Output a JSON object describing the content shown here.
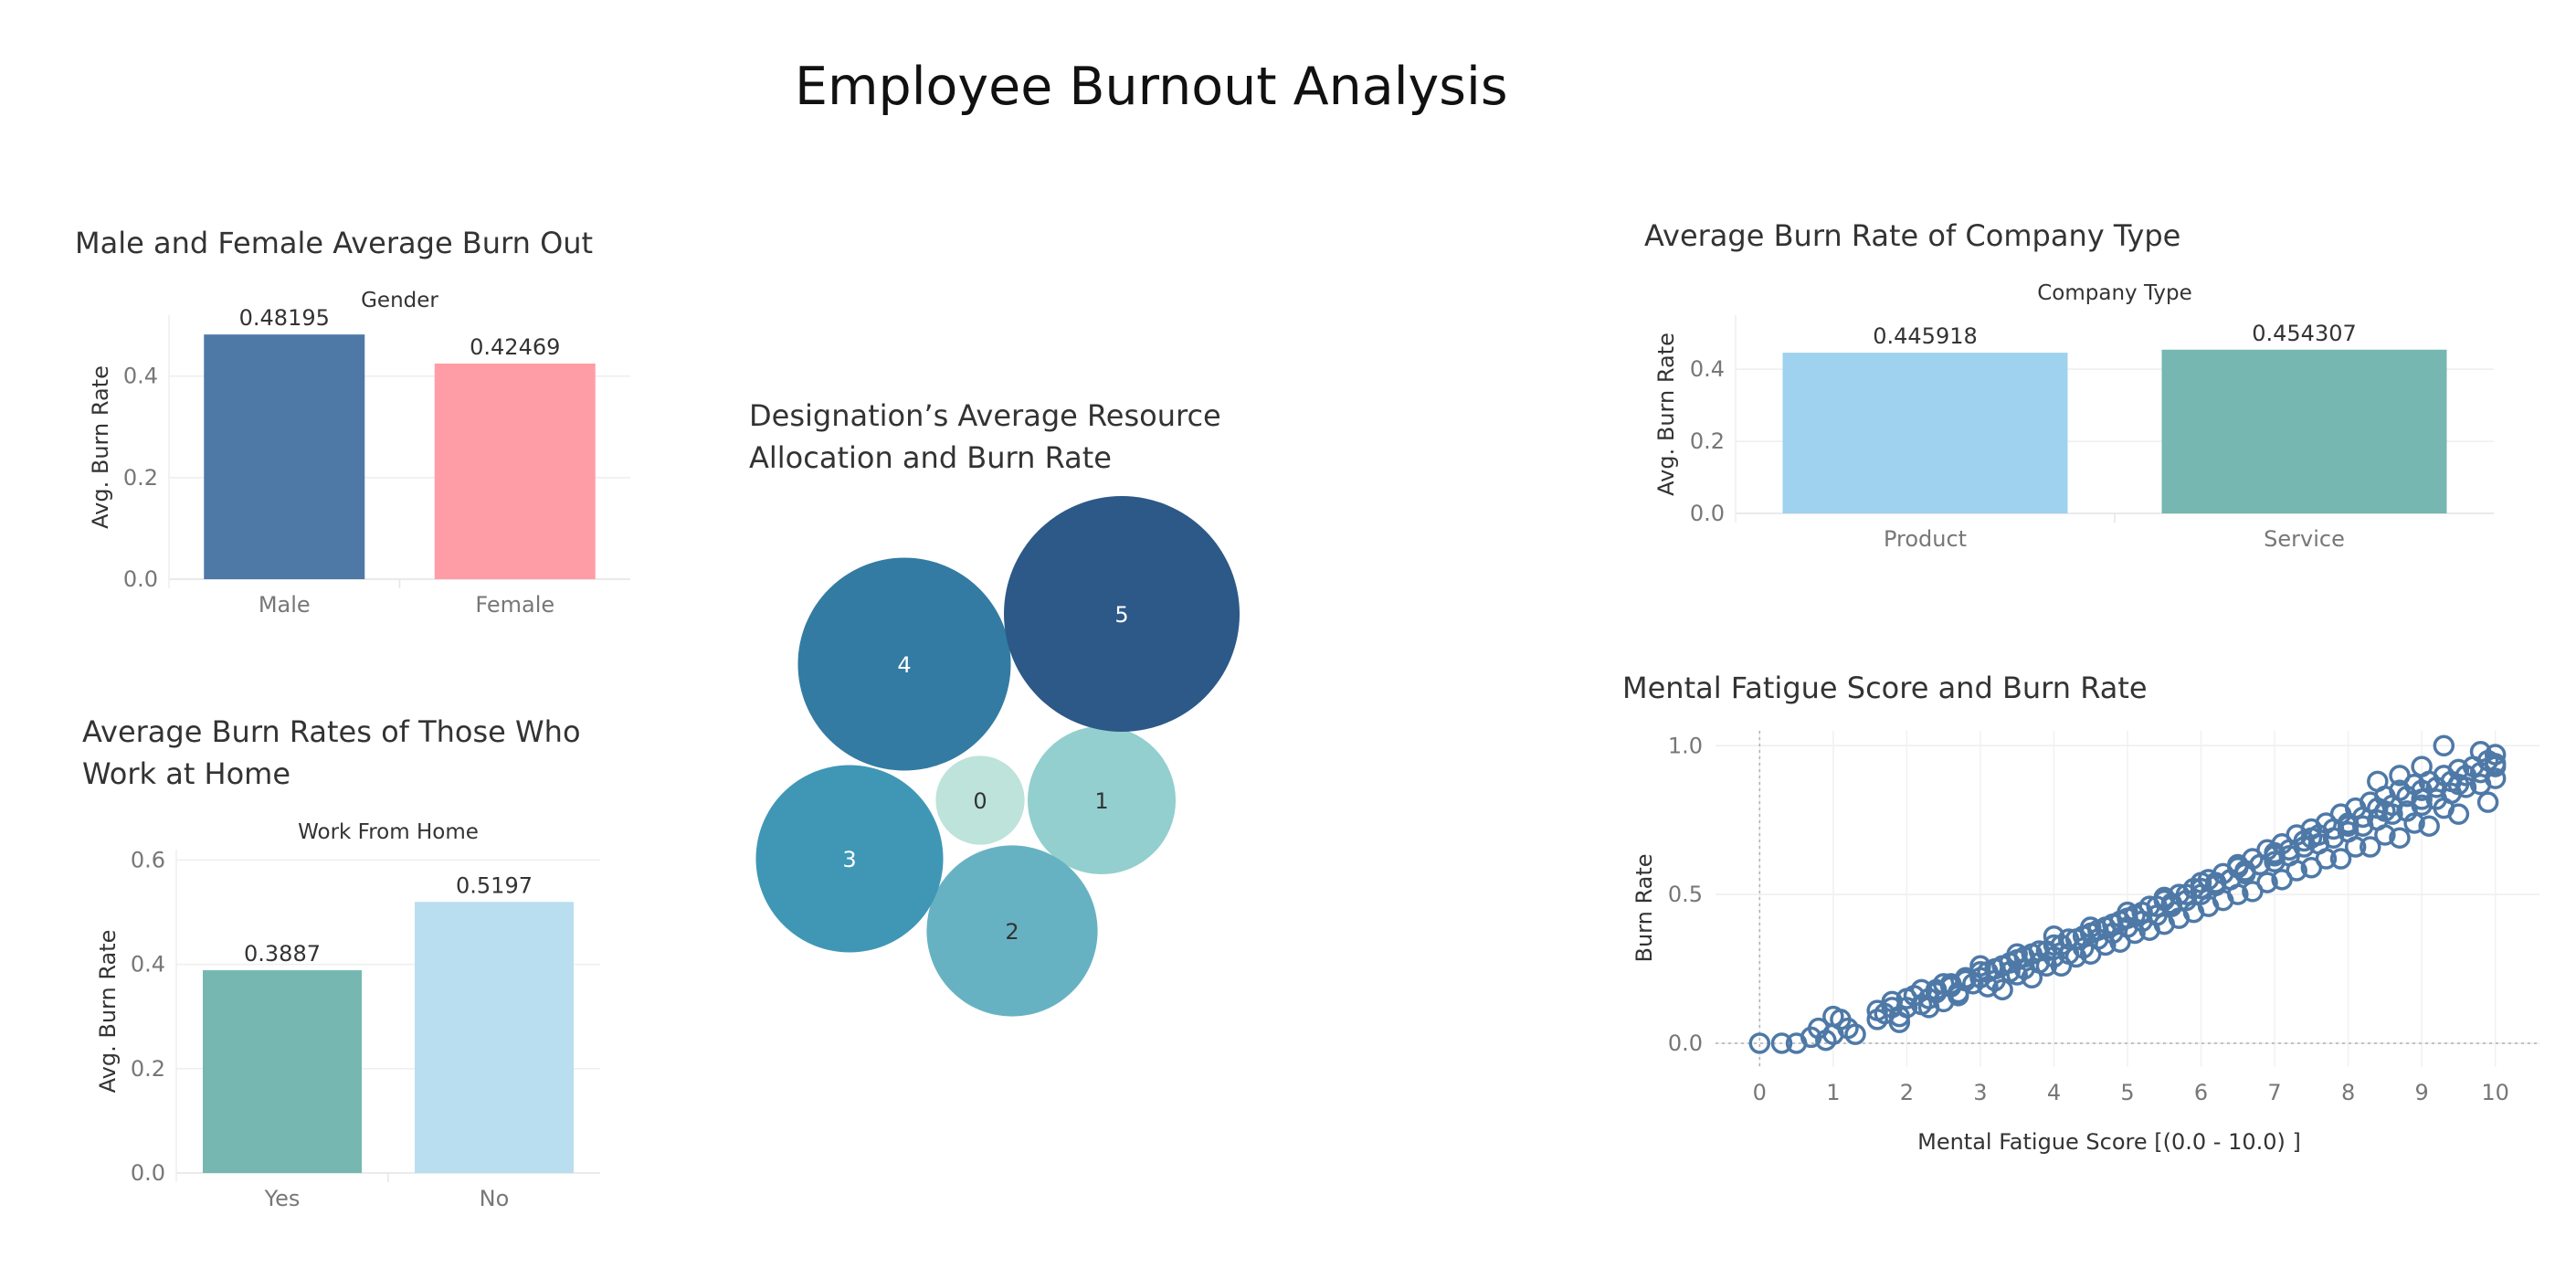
{
  "dashboard": {
    "title": "Employee Burnout Analysis"
  },
  "chart_data": [
    {
      "id": "gender",
      "type": "bar",
      "title": "Male and Female Average Burn Out",
      "header": "Gender",
      "ylabel": "Avg. Burn Rate",
      "xlabel": "",
      "categories": [
        "Male",
        "Female"
      ],
      "values": [
        0.48195,
        0.42469
      ],
      "value_labels": [
        "0.48195",
        "0.42469"
      ],
      "colors": [
        "#4e79a7",
        "#ff9da7"
      ],
      "ylim": [
        0,
        0.52
      ],
      "yticks": [
        0,
        0.2,
        0.4
      ],
      "ytick_labels": [
        "0.0",
        "0.2",
        "0.4"
      ],
      "grid": true
    },
    {
      "id": "wfh",
      "type": "bar",
      "title": "Average Burn Rates of Those Who Work at Home",
      "title_lines": [
        "Average Burn Rates of Those Who",
        "Work at Home"
      ],
      "header": "Work From Home",
      "ylabel": "Avg. Burn Rate",
      "xlabel": "",
      "categories": [
        "Yes",
        "No"
      ],
      "values": [
        0.3887,
        0.5197
      ],
      "value_labels": [
        "0.3887",
        "0.5197"
      ],
      "colors": [
        "#76b7b2",
        "#b9def0"
      ],
      "ylim": [
        0,
        0.62
      ],
      "yticks": [
        0,
        0.2,
        0.4,
        0.6
      ],
      "ytick_labels": [
        "0.0",
        "0.2",
        "0.4",
        "0.6"
      ],
      "grid": true
    },
    {
      "id": "designation",
      "type": "bubble",
      "title": "Designation’s Average Resource Allocation and Burn Rate",
      "title_lines": [
        "Designation’s Average Resource",
        "Allocation and Burn Rate"
      ],
      "labels": [
        "0",
        "1",
        "2",
        "3",
        "4",
        "5"
      ],
      "size_values": [
        0.27,
        0.75,
        1.0,
        1.2,
        1.55,
        1.9
      ],
      "colors": [
        "#bde3da",
        "#92cfce",
        "#67b2c2",
        "#3f97b5",
        "#337ba2",
        "#2c5987"
      ],
      "label_colors": [
        "#333333",
        "#333333",
        "#333333",
        "#ffffff",
        "#ffffff",
        "#ffffff"
      ]
    },
    {
      "id": "company",
      "type": "bar",
      "title": "Average Burn Rate of Company Type",
      "header": "Company Type",
      "ylabel": "Avg. Burn Rate",
      "xlabel": "",
      "categories": [
        "Product",
        "Service"
      ],
      "values": [
        0.445918,
        0.454307
      ],
      "value_labels": [
        "0.445918",
        "0.454307"
      ],
      "colors": [
        "#9fd2ee",
        "#76b7b2"
      ],
      "ylim": [
        0,
        0.55
      ],
      "yticks": [
        0,
        0.2,
        0.4
      ],
      "ytick_labels": [
        "0.0",
        "0.2",
        "0.4"
      ],
      "grid": true
    },
    {
      "id": "fatigue",
      "type": "scatter",
      "title": "Mental Fatigue Score and Burn Rate",
      "xlabel": "Mental Fatigue Score [(0.0 - 10.0) ]",
      "ylabel": "Burn Rate",
      "xlim": [
        -0.6,
        10.6
      ],
      "ylim": [
        -0.08,
        1.05
      ],
      "xticks": [
        0,
        1,
        2,
        3,
        4,
        5,
        6,
        7,
        8,
        9,
        10
      ],
      "xtick_labels": [
        "0",
        "1",
        "2",
        "3",
        "4",
        "5",
        "6",
        "7",
        "8",
        "9",
        "10"
      ],
      "yticks": [
        0,
        0.5,
        1
      ],
      "ytick_labels": [
        "0.0",
        "0.5",
        "1.0"
      ],
      "marker_color": "#4e79a7",
      "marker": "open-circle",
      "grid": true,
      "x": [
        0.0,
        0.3,
        0.5,
        0.7,
        0.8,
        0.9,
        1.0,
        1.0,
        1.1,
        1.2,
        1.3,
        1.6,
        1.7,
        1.8,
        1.9,
        2.0,
        2.1,
        2.2,
        2.3,
        2.4,
        2.5,
        2.6,
        2.7,
        2.8,
        2.9,
        3.0,
        3.1,
        3.2,
        3.3,
        3.4,
        3.5,
        3.6,
        3.7,
        3.8,
        3.9,
        4.0,
        4.1,
        4.2,
        4.3,
        4.4,
        4.5,
        4.6,
        4.7,
        4.8,
        4.9,
        5.0,
        5.1,
        5.2,
        5.3,
        5.4,
        5.5,
        5.6,
        5.7,
        5.8,
        5.9,
        6.0,
        6.1,
        6.2,
        6.3,
        6.4,
        6.5,
        6.6,
        6.7,
        6.8,
        6.9,
        7.0,
        7.1,
        7.2,
        7.3,
        7.4,
        7.5,
        7.6,
        7.7,
        7.8,
        7.9,
        8.0,
        8.1,
        8.2,
        8.3,
        8.4,
        8.5,
        8.6,
        8.7,
        8.8,
        8.9,
        9.0,
        9.1,
        9.2,
        9.3,
        9.4,
        9.5,
        9.6,
        9.7,
        9.8,
        9.9,
        10.0,
        1.6,
        1.8,
        2.0,
        2.2,
        2.4,
        2.6,
        2.8,
        3.0,
        3.2,
        3.4,
        3.6,
        3.8,
        4.0,
        4.2,
        4.4,
        4.6,
        4.8,
        5.0,
        5.2,
        5.4,
        5.6,
        5.8,
        6.0,
        6.2,
        6.4,
        6.6,
        6.8,
        7.0,
        7.2,
        7.4,
        7.6,
        7.8,
        8.0,
        8.2,
        8.4,
        8.6,
        8.8,
        9.0,
        9.2,
        9.4,
        9.6,
        9.8,
        10.0,
        2.5,
        3.0,
        3.5,
        4.0,
        4.5,
        5.0,
        5.5,
        6.0,
        6.5,
        7.0,
        7.5,
        8.0,
        8.5,
        9.0,
        9.5,
        1.9,
        2.3,
        2.7,
        3.1,
        3.5,
        3.9,
        4.3,
        4.7,
        5.1,
        5.5,
        5.9,
        6.3,
        6.7,
        7.1,
        7.5,
        7.9,
        8.3,
        8.7,
        9.1,
        9.5,
        9.9,
        8.4,
        8.7,
        9.0,
        9.3,
        9.8,
        10.0,
        10.0,
        3.3,
        3.7,
        4.1,
        4.5,
        4.9,
        5.3,
        5.7,
        6.1,
        6.5,
        6.9,
        7.3,
        7.7,
        8.1,
        8.5,
        8.9,
        9.3
      ],
      "y": [
        0.0,
        0.0,
        0.0,
        0.02,
        0.05,
        0.01,
        0.03,
        0.09,
        0.08,
        0.05,
        0.03,
        0.08,
        0.1,
        0.12,
        0.09,
        0.12,
        0.16,
        0.13,
        0.15,
        0.18,
        0.14,
        0.19,
        0.17,
        0.21,
        0.2,
        0.22,
        0.24,
        0.21,
        0.26,
        0.24,
        0.28,
        0.25,
        0.3,
        0.27,
        0.31,
        0.29,
        0.33,
        0.3,
        0.35,
        0.32,
        0.37,
        0.35,
        0.39,
        0.37,
        0.41,
        0.39,
        0.43,
        0.41,
        0.46,
        0.43,
        0.48,
        0.46,
        0.5,
        0.48,
        0.52,
        0.5,
        0.55,
        0.53,
        0.57,
        0.55,
        0.6,
        0.57,
        0.62,
        0.6,
        0.65,
        0.63,
        0.67,
        0.65,
        0.7,
        0.68,
        0.72,
        0.7,
        0.74,
        0.72,
        0.77,
        0.74,
        0.79,
        0.76,
        0.81,
        0.79,
        0.83,
        0.8,
        0.85,
        0.83,
        0.87,
        0.85,
        0.88,
        0.86,
        0.9,
        0.88,
        0.92,
        0.9,
        0.93,
        0.91,
        0.95,
        0.93,
        0.11,
        0.14,
        0.15,
        0.18,
        0.17,
        0.2,
        0.22,
        0.24,
        0.25,
        0.27,
        0.29,
        0.31,
        0.33,
        0.35,
        0.36,
        0.38,
        0.4,
        0.42,
        0.44,
        0.46,
        0.47,
        0.5,
        0.52,
        0.54,
        0.55,
        0.58,
        0.6,
        0.61,
        0.63,
        0.66,
        0.67,
        0.69,
        0.71,
        0.73,
        0.75,
        0.77,
        0.78,
        0.8,
        0.82,
        0.84,
        0.86,
        0.87,
        0.89,
        0.2,
        0.26,
        0.3,
        0.36,
        0.39,
        0.44,
        0.49,
        0.54,
        0.59,
        0.64,
        0.69,
        0.73,
        0.78,
        0.82,
        0.87,
        0.07,
        0.12,
        0.16,
        0.19,
        0.23,
        0.26,
        0.29,
        0.33,
        0.37,
        0.4,
        0.44,
        0.48,
        0.51,
        0.55,
        0.59,
        0.62,
        0.66,
        0.69,
        0.73,
        0.77,
        0.81,
        0.88,
        0.9,
        0.93,
        1.0,
        0.98,
        0.97,
        0.94,
        0.18,
        0.22,
        0.26,
        0.3,
        0.34,
        0.38,
        0.42,
        0.46,
        0.5,
        0.54,
        0.58,
        0.62,
        0.66,
        0.7,
        0.74,
        0.79
      ]
    }
  ]
}
